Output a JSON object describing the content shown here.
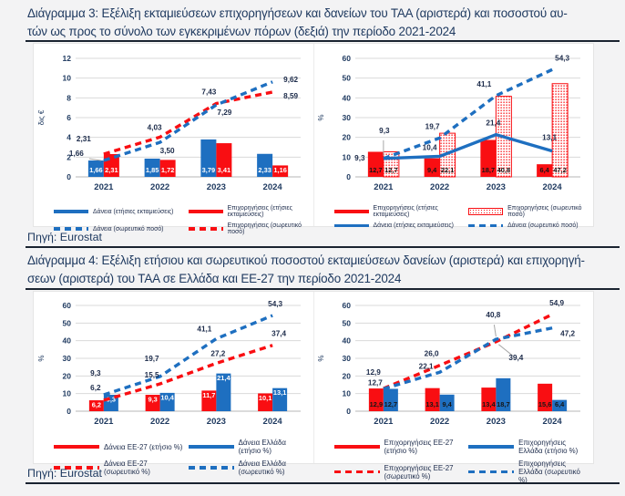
{
  "colors": {
    "blue": "#1e6fc0",
    "red": "#f90e12",
    "navy": "#1f3a60",
    "grid": "#d9d9d9",
    "axis": "#b7b7b7",
    "callout": "#a6a6a6",
    "label": "#1c2b4a"
  },
  "heading3": {
    "line1": "Διάγραμμα 3: Εξέλιξη εκταμιεύσεων επιχορηγήσεων και δανείων του ΤΑΑ (αριστερά) και ποσοστού αυ-",
    "line2": "τών ως προς το σύνολο των εγκεκριμένων πόρων (δεξιά) την περίοδο 2021-2024"
  },
  "heading4": {
    "line1": "Διάγραμμα 4: Εξέλιξη ετήσιου και σωρευτικού ποσοστού εκταμιεύσεων δανείων (αριστερά) και επιχορηγή-",
    "line2": "σεων (αριστερά) του ΤΑΑ σε Ελλάδα και ΕΕ-27 την περίοδο 2021-2024"
  },
  "source1": "Πηγή: Eurostat",
  "source2": "Πηγή: Eurostat",
  "chart_data": [
    {
      "type": "bar+line",
      "ylabel": "δις €",
      "ylim": [
        0,
        12
      ],
      "ystep": 2,
      "grid": true,
      "categories": [
        "2021",
        "2022",
        "2023",
        "2024"
      ],
      "bar_series": [
        {
          "name": "Δάνεια (ετήσιες εκταμιεύσεις)",
          "color": "#1e6fc0",
          "values": [
            1.66,
            1.85,
            3.79,
            2.33
          ],
          "labels": [
            "1,66",
            "1,85",
            "3,79",
            "2,33"
          ]
        },
        {
          "name": "Επιχορηγήσεις (ετήσιες εκταμιεύσεις)",
          "color": "#f90e12",
          "values": [
            2.31,
            1.72,
            3.41,
            1.16
          ],
          "labels": [
            "2,31",
            "1,72",
            "3,41",
            "1,16"
          ]
        }
      ],
      "line_series": [
        {
          "name": "Επιχορηγήσεις (σωρευτικό ποσό)",
          "color": "#f90e12",
          "dash": true,
          "values": [
            2.31,
            4.03,
            7.43,
            8.59
          ],
          "labels": [
            "2,31",
            "4,03",
            "7,43",
            "8,59"
          ]
        },
        {
          "name": "Δάνεια (σωρευτικό ποσό)",
          "color": "#1e6fc0",
          "dash": true,
          "values": [
            1.66,
            3.5,
            7.29,
            9.62
          ],
          "labels": [
            "1,66",
            "3,50",
            "7,29",
            "9,62"
          ]
        }
      ],
      "legend": [
        {
          "swatch": "solid",
          "color": "#1e6fc0",
          "label": "Δάνεια (ετήσιες εκταμιεύσεις)"
        },
        {
          "swatch": "solid",
          "color": "#f90e12",
          "label": "Επιχορηγήσεις (ετήσιες εκταμιεύσεις)"
        },
        {
          "swatch": "dash",
          "color": "#1e6fc0",
          "label": "Δάνεια (σωρευτικό ποσό)"
        },
        {
          "swatch": "dash",
          "color": "#f90e12",
          "label": "Επιχορηγήσεις (σωρευτικό ποσό)"
        }
      ]
    },
    {
      "type": "bar+line",
      "ylabel": "%",
      "ylim": [
        0,
        60
      ],
      "ystep": 10,
      "grid": true,
      "categories": [
        "2021",
        "2022",
        "2023",
        "2024"
      ],
      "bar_series": [
        {
          "name": "Επιχορηγήσεις (ετήσιες εκταμιεύσεις)",
          "color": "#f90e12",
          "values": [
            12.7,
            9.4,
            18.7,
            6.4
          ],
          "labels": [
            "12,7",
            "9,4",
            "18,7",
            "6,4"
          ]
        },
        {
          "name": "Επιχορηγήσεις (σωρευτικό ποσό)",
          "color": "#f90e12",
          "pattern": "dots",
          "values": [
            12.7,
            22.1,
            40.8,
            47.2
          ],
          "labels": [
            "12,7",
            "22,1",
            "40,8",
            "47,2"
          ]
        }
      ],
      "line_series": [
        {
          "name": "Δάνεια (ετήσιες εκταμιεύσεις)",
          "color": "#1e6fc0",
          "dash": false,
          "values": [
            9.3,
            10.4,
            21.4,
            13.1
          ],
          "labels": [
            "9,3",
            "10,4",
            "21,4",
            "13,1"
          ]
        },
        {
          "name": "Δάνεια (σωρευτικό ποσό)",
          "color": "#1e6fc0",
          "dash": true,
          "values": [
            9.3,
            19.7,
            41.1,
            54.3
          ],
          "labels": [
            "9,3",
            "19,7",
            "41,1",
            "54,3"
          ]
        }
      ],
      "legend": [
        {
          "swatch": "solid",
          "color": "#f90e12",
          "label": "Επιχορηγήσεις (ετήσιες εκταμιεύσεις)"
        },
        {
          "swatch": "dots",
          "color": "#f90e12",
          "label": "Επιχορηγήσεις (σωρευτικό ποσό)"
        },
        {
          "swatch": "solid",
          "color": "#1e6fc0",
          "label": "Δάνεια (ετήσιες εκταμιεύσεις)"
        },
        {
          "swatch": "dash",
          "color": "#1e6fc0",
          "label": "Δάνεια (σωρευτικό ποσό)"
        }
      ]
    },
    {
      "type": "bar+line",
      "ylabel": "%",
      "ylim": [
        0,
        60
      ],
      "ystep": 10,
      "grid": true,
      "categories": [
        "2021",
        "2022",
        "2023",
        "2024"
      ],
      "bar_series": [
        {
          "name": "Δάνεια ΕΕ-27 (ετήσιο %)",
          "color": "#f90e12",
          "values": [
            6.2,
            9.3,
            11.7,
            10.1
          ],
          "labels": [
            "6,2",
            "9,3",
            "11,7",
            "10,1"
          ]
        },
        {
          "name": "Δάνεια Ελλάδα (ετήσιο %)",
          "color": "#1e6fc0",
          "values": [
            9.3,
            10.4,
            21.4,
            13.1
          ],
          "labels": [
            "9,3",
            "10,4",
            "21,4",
            "13,1"
          ]
        }
      ],
      "line_series": [
        {
          "name": "Δάνεια ΕΕ-27 (σωρευτικό %)",
          "color": "#f90e12",
          "dash": true,
          "values": [
            6.2,
            15.5,
            27.2,
            37.4
          ],
          "labels": [
            "6,2",
            "15,5",
            "27,2",
            "37,4"
          ]
        },
        {
          "name": "Δάνεια Ελλάδα (σωρευτικό %)",
          "color": "#1e6fc0",
          "dash": true,
          "values": [
            9.3,
            19.7,
            41.1,
            54.3
          ],
          "labels": [
            "9,3",
            "19,7",
            "41,1",
            "54,3"
          ]
        }
      ],
      "legend": [
        {
          "swatch": "solid",
          "color": "#f90e12",
          "label": "Δάνεια ΕΕ-27 (ετήσιο %)"
        },
        {
          "swatch": "solid",
          "color": "#1e6fc0",
          "label": "Δάνεια Ελλάδα (ετήσιο %)"
        },
        {
          "swatch": "dash",
          "color": "#f90e12",
          "label": "Δάνεια ΕΕ-27 (σωρευτικό %)"
        },
        {
          "swatch": "dash",
          "color": "#1e6fc0",
          "label": "Δάνεια Ελλάδα (σωρευτικό %)"
        }
      ]
    },
    {
      "type": "bar+line",
      "ylabel": "%",
      "ylim": [
        0,
        60
      ],
      "ystep": 10,
      "grid": true,
      "categories": [
        "2021",
        "2022",
        "2023",
        "2024"
      ],
      "bar_series": [
        {
          "name": "Επιχορηγήσεις ΕΕ-27 (ετήσιο %)",
          "color": "#f90e12",
          "values": [
            12.9,
            13.1,
            13.4,
            15.6
          ],
          "labels": [
            "12,9",
            "13,1",
            "13,4",
            "15,6"
          ]
        },
        {
          "name": "Επιχορηγήσεις Ελλάδα (ετήσιο %)",
          "color": "#1e6fc0",
          "values": [
            12.7,
            9.4,
            18.7,
            6.4
          ],
          "labels": [
            "12,7",
            "9,4",
            "18,7",
            "6,4"
          ]
        }
      ],
      "line_series": [
        {
          "name": "Επιχορηγήσεις ΕΕ-27 (σωρευτικό %)",
          "color": "#f90e12",
          "dash": true,
          "values": [
            12.9,
            26.0,
            39.4,
            54.9
          ],
          "labels": [
            "12,9",
            "26,0",
            "39,4",
            "54,9"
          ]
        },
        {
          "name": "Επιχορηγήσεις Ελλάδα (σωρευτικό %)",
          "color": "#1e6fc0",
          "dash": true,
          "values": [
            12.7,
            22.1,
            40.8,
            47.2
          ],
          "labels": [
            "12,7",
            "22,1",
            "40,8",
            "47,2"
          ]
        }
      ],
      "legend": [
        {
          "swatch": "solid",
          "color": "#f90e12",
          "label": "Επιχορηγήσεις ΕΕ-27 (ετήσιο %)"
        },
        {
          "swatch": "solid",
          "color": "#1e6fc0",
          "label": "Επιχορηγήσεις Ελλάδα (ετήσιο %)"
        },
        {
          "swatch": "dash",
          "color": "#f90e12",
          "label": "Επιχορηγήσεις ΕΕ-27 (σωρευτικό %)"
        },
        {
          "swatch": "dash",
          "color": "#1e6fc0",
          "label": "Επιχορηγήσεις Ελλάδα (σωρευτικό %)"
        }
      ]
    }
  ]
}
